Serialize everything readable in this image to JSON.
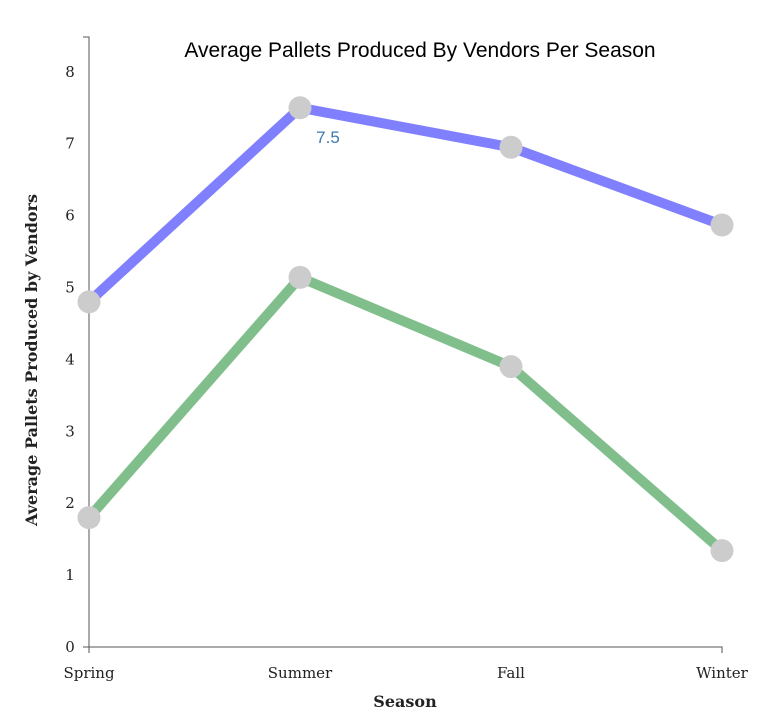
{
  "chart_data": {
    "type": "line",
    "title": "Average Pallets Produced By Vendors Per Season",
    "xlabel": "Season",
    "ylabel": "Average Pallets Produced by Vendors",
    "categories": [
      "Spring",
      "Summer",
      "Fall",
      "Winter"
    ],
    "ylim": [
      0,
      8.5
    ],
    "yticks": [
      "0",
      "1",
      "2",
      "3",
      "4",
      "5",
      "6",
      "7",
      "8"
    ],
    "grid": false,
    "series": [
      {
        "values": [
          4.8,
          7.5,
          6.95,
          5.87
        ],
        "color": "#8080ff"
      },
      {
        "values": [
          1.8,
          5.14,
          3.9,
          1.34
        ],
        "color": "#80bf8c"
      }
    ],
    "marker_color": "#cccccc",
    "annotations": [
      {
        "series": 0,
        "index": 1,
        "text": "7.5"
      }
    ]
  }
}
